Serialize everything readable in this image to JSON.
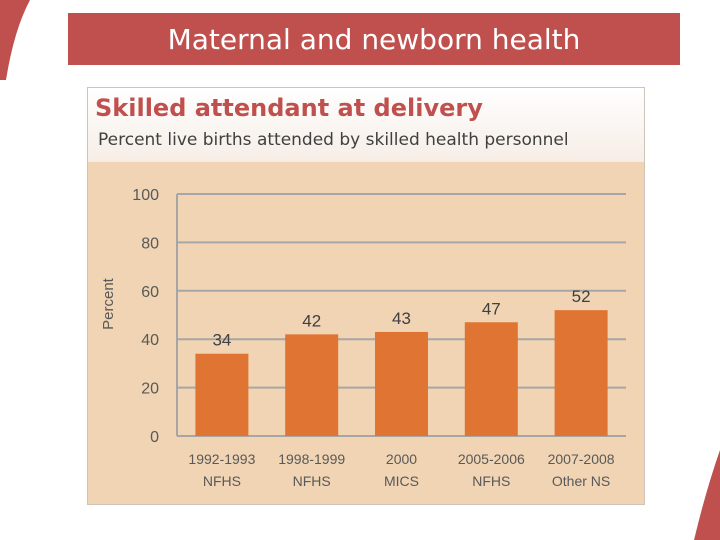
{
  "slide": {
    "title": "Maternal and newborn health",
    "accent_color": "#c0504d",
    "bar_color": "#e07432",
    "panel_color": "#f0d4b3"
  },
  "chart_data": {
    "type": "bar",
    "title": "Skilled attendant at delivery",
    "subtitle": "Percent live births attended by skilled health personnel",
    "xlabel": "",
    "ylabel": "Percent",
    "ylim": [
      0,
      100
    ],
    "yticks": [
      0,
      20,
      40,
      60,
      80,
      100
    ],
    "grid": true,
    "categories": [
      [
        "1992-1993",
        "NFHS"
      ],
      [
        "1998-1999",
        "NFHS"
      ],
      [
        "2000",
        "MICS"
      ],
      [
        "2005-2006",
        "NFHS"
      ],
      [
        "2007-2008",
        "Other NS"
      ]
    ],
    "values": [
      34,
      42,
      43,
      47,
      52
    ]
  }
}
